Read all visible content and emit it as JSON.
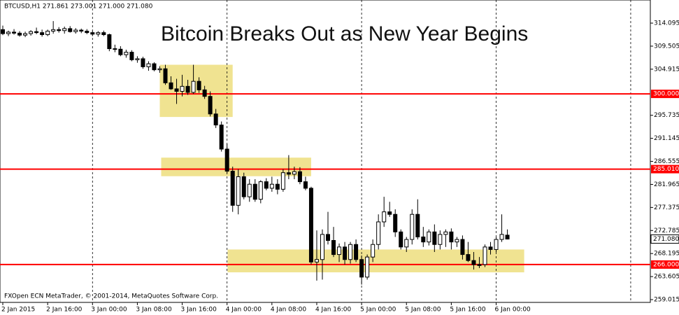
{
  "chart_data": {
    "type": "candlestick",
    "title": "Bitcoin Breaks Out as New Year Begins",
    "header": "BTCUSD,H1  271.861 273.001 271.000 271.080",
    "footer": "FXOpen ECN MetaTrader, © 2001-2014, MetaQuotes Software Corp.",
    "categories": [
      "2 Jan 2015",
      null,
      null,
      null,
      null,
      null,
      null,
      null,
      "2 Jan 16:00",
      null,
      null,
      null,
      null,
      null,
      null,
      null,
      "3 Jan 00:00",
      null,
      null,
      null,
      null,
      null,
      null,
      null,
      "3 Jan 08:00",
      null,
      null,
      null,
      null,
      null,
      null,
      null,
      "3 Jan 16:00",
      null,
      null,
      null,
      null,
      null,
      null,
      null,
      "4 Jan 00:00",
      null,
      null,
      null,
      null,
      null,
      null,
      null,
      "4 Jan 08:00",
      null,
      null,
      null,
      null,
      null,
      null,
      null,
      "4 Jan 16:00",
      null,
      null,
      null,
      null,
      null,
      null,
      null,
      "5 Jan 00:00",
      null,
      null,
      null,
      null,
      null,
      null,
      null,
      "5 Jan 08:00",
      null,
      null,
      null,
      null,
      null,
      null,
      null,
      "5 Jan 16:00",
      null,
      null,
      null,
      null,
      null,
      null,
      null,
      "6 Jan 00:00",
      null,
      null
    ],
    "open": [
      312.8,
      312.0,
      312.3,
      312.1,
      311.7,
      312.0,
      312.4,
      312.2,
      311.8,
      312.5,
      312.8,
      312.6,
      313.0,
      312.4,
      312.7,
      312.5,
      312.2,
      311.9,
      312.2,
      311.8,
      309.0,
      308.9,
      307.8,
      308.3,
      306.8,
      307.0,
      305.4,
      306.0,
      304.8,
      305.0,
      302.2,
      301.0,
      300.5,
      301.5,
      300.3,
      302.5,
      300.8,
      299.5,
      296.0,
      293.8,
      289.0,
      284.6,
      277.8,
      283.5,
      279.5,
      282.0,
      279.0,
      282.5,
      281.2,
      282.0,
      281.0,
      284.3,
      284.0,
      284.5,
      282.5,
      281.2,
      266.5,
      267.0,
      272.0,
      270.8,
      268.0,
      269.5,
      267.0,
      270.0,
      267.0,
      263.5,
      267.5,
      270.0,
      274.5,
      276.5,
      276.0,
      272.5,
      269.5,
      271.0,
      276.0,
      271.5,
      270.5,
      272.5,
      270.0,
      272.0,
      272.5,
      270.5,
      271.0,
      268.0,
      266.8,
      266.0,
      266.0,
      269.5,
      269.0,
      271.0,
      271.861
    ],
    "high": [
      313.6,
      312.6,
      312.9,
      312.5,
      312.4,
      312.7,
      313.2,
      312.8,
      312.8,
      314.5,
      313.3,
      313.4,
      313.5,
      313.1,
      313.0,
      312.9,
      312.6,
      312.5,
      312.6,
      312.0,
      309.8,
      309.5,
      308.8,
      308.7,
      307.5,
      307.4,
      306.5,
      306.3,
      305.5,
      305.8,
      303.5,
      303.0,
      303.8,
      302.8,
      305.8,
      303.3,
      301.6,
      300.5,
      297.0,
      294.5,
      290.0,
      285.5,
      285.0,
      284.3,
      283.0,
      283.0,
      282.8,
      283.2,
      283.5,
      283.0,
      285.0,
      287.8,
      285.5,
      285.4,
      283.5,
      281.5,
      272.8,
      273.0,
      276.5,
      273.5,
      270.2,
      270.5,
      270.5,
      271.0,
      267.8,
      268.0,
      271.0,
      276.0,
      279.5,
      278.5,
      277.0,
      273.0,
      271.5,
      277.0,
      279.0,
      273.5,
      273.0,
      274.0,
      272.8,
      273.0,
      273.2,
      271.5,
      271.8,
      270.5,
      268.5,
      267.5,
      270.0,
      270.5,
      271.5,
      276.0,
      273.001
    ],
    "low": [
      311.7,
      311.5,
      311.8,
      311.4,
      311.3,
      311.6,
      311.9,
      311.4,
      311.5,
      312.0,
      312.2,
      312.0,
      312.2,
      312.0,
      312.1,
      311.9,
      311.5,
      311.4,
      311.5,
      308.5,
      308.3,
      307.5,
      307.2,
      306.5,
      306.2,
      305.0,
      304.6,
      304.5,
      304.2,
      301.8,
      300.8,
      298.0,
      299.5,
      299.8,
      300.0,
      300.2,
      299.0,
      295.5,
      293.2,
      288.5,
      284.2,
      276.5,
      276.0,
      279.0,
      278.5,
      278.5,
      278.2,
      280.8,
      280.5,
      280.0,
      280.5,
      283.0,
      283.0,
      282.0,
      280.8,
      266.0,
      262.8,
      263.0,
      270.0,
      267.5,
      266.5,
      266.0,
      266.2,
      266.5,
      262.0,
      263.0,
      266.5,
      269.0,
      273.5,
      275.5,
      271.5,
      269.0,
      268.5,
      270.0,
      271.0,
      269.5,
      269.8,
      268.5,
      269.0,
      269.5,
      269.0,
      269.5,
      267.0,
      266.5,
      265.0,
      265.3,
      265.5,
      268.0,
      268.5,
      270.5,
      271.0
    ],
    "close": [
      312.0,
      312.3,
      312.1,
      311.7,
      312.0,
      312.4,
      312.2,
      311.8,
      312.5,
      312.8,
      312.6,
      313.0,
      312.4,
      312.7,
      312.5,
      312.2,
      311.9,
      312.2,
      311.8,
      309.0,
      308.9,
      307.8,
      308.3,
      306.8,
      307.0,
      305.4,
      306.0,
      304.8,
      305.0,
      302.2,
      301.0,
      300.5,
      301.5,
      300.3,
      302.5,
      300.8,
      299.5,
      296.0,
      293.8,
      289.0,
      284.6,
      277.8,
      283.5,
      279.5,
      282.0,
      279.0,
      282.5,
      281.2,
      282.0,
      281.0,
      284.3,
      284.0,
      284.5,
      282.5,
      281.2,
      266.5,
      267.0,
      272.0,
      270.8,
      268.0,
      269.5,
      267.0,
      270.0,
      267.0,
      263.5,
      267.5,
      270.0,
      274.5,
      276.5,
      276.0,
      272.5,
      269.5,
      271.0,
      276.0,
      271.5,
      270.5,
      272.5,
      270.0,
      272.0,
      272.5,
      270.5,
      271.0,
      268.0,
      266.8,
      266.0,
      265.8,
      269.5,
      269.0,
      271.0,
      272.0,
      271.08
    ],
    "up_color": "#ffffff",
    "down_color": "#000000",
    "xlim": [
      -0.5,
      115.5
    ],
    "ylim": [
      258.46,
      318.7
    ],
    "yticks": [
      314.095,
      309.505,
      304.915,
      295.735,
      291.145,
      286.555,
      281.965,
      277.375,
      272.785,
      268.195,
      263.605,
      259.015
    ],
    "hlines": [
      {
        "value": 300,
        "label": "300.000"
      },
      {
        "value": 285.01,
        "label": "285.010"
      },
      {
        "value": 266,
        "label": "266.000"
      }
    ],
    "hline_color": "#ff0000",
    "last_price": {
      "value": 271.08,
      "label": "271.080"
    },
    "zones": [
      {
        "x": [
          28,
          41
        ],
        "y": [
          295.4,
          305.8
        ]
      },
      {
        "x": [
          28.25,
          55
        ],
        "y": [
          283.6,
          287.3
        ]
      },
      {
        "x": [
          40.1,
          93
        ],
        "y": [
          264.45,
          269.0
        ]
      }
    ],
    "zone_color": "#f0e391"
  }
}
